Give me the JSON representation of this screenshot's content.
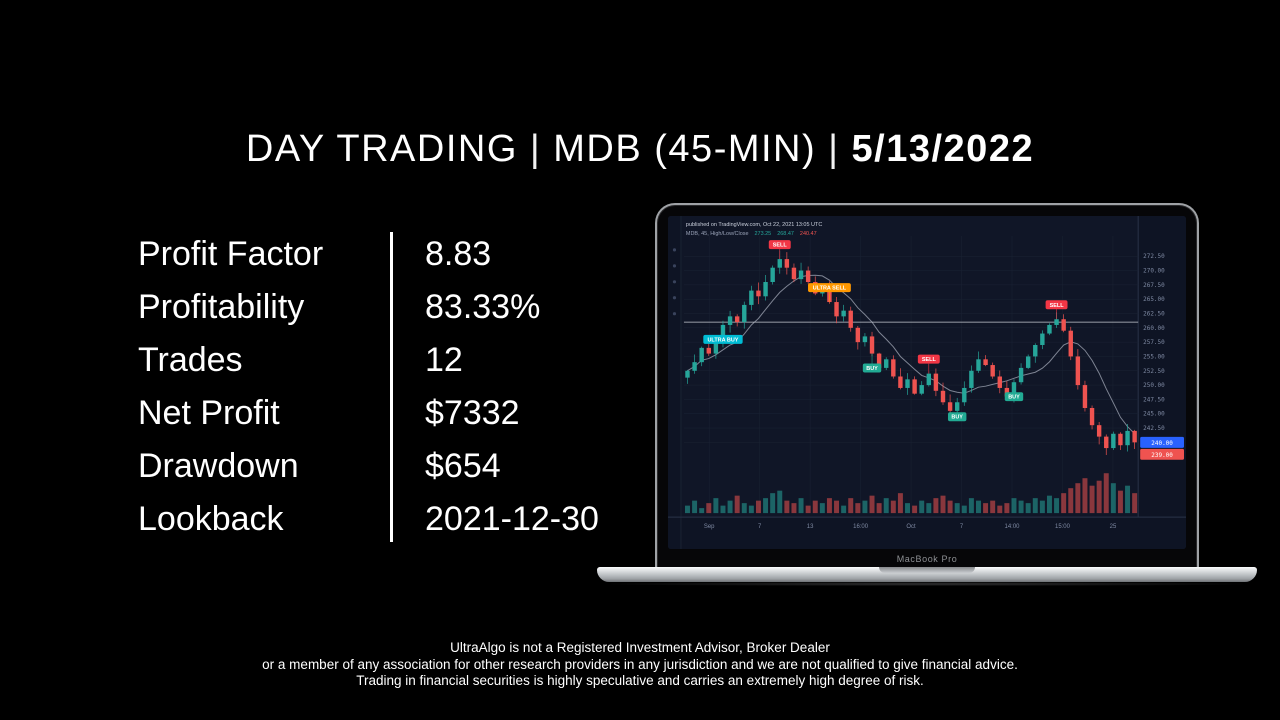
{
  "title": {
    "segments": [
      "DAY TRADING",
      "MDB (45-MIN)",
      "5/13/2022"
    ],
    "divider": "|"
  },
  "stats": {
    "rows": [
      {
        "label": "Profit Factor",
        "value": "8.83"
      },
      {
        "label": "Profitability",
        "value": "83.33%"
      },
      {
        "label": "Trades",
        "value": "12"
      },
      {
        "label": "Net Profit",
        "value": "$7332"
      },
      {
        "label": "Drawdown",
        "value": "$654"
      },
      {
        "label": "Lookback",
        "value": "2021-12-30"
      }
    ]
  },
  "laptop": {
    "label": "MacBook Pro"
  },
  "disclaimer": {
    "lines": [
      "UltraAlgo is not a Registered Investment Advisor, Broker Dealer",
      "or a member of any association for other research providers in any jurisdiction and we are not qualified to give financial advice.",
      "Trading in financial securities is highly speculative and carries an extremely high degree of risk."
    ]
  },
  "chart_data": {
    "type": "candlestick",
    "title": "MDB 45-minute backtest chart",
    "header": {
      "line1": "published on TradingView.com, Oct 22, 2021 13:05 UTC",
      "symbol_line": "MDB, 45, High/Low/Close",
      "values": [
        {
          "text": "273.25",
          "color": "#26a69a"
        },
        {
          "text": "268.47",
          "color": "#26a69a"
        },
        {
          "text": "240.47",
          "color": "#ef5350"
        }
      ]
    },
    "ylim": [
      236,
      275
    ],
    "y_ticks": [
      240,
      242.5,
      245,
      247.5,
      250,
      252.5,
      255,
      257.5,
      260,
      262.5,
      265,
      267.5,
      270,
      272.5
    ],
    "x_labels": [
      "Sep",
      "7",
      "13",
      "16:00",
      "Oct",
      "7",
      "14:00",
      "15:00",
      "25"
    ],
    "entry_line": 261,
    "closes": [
      252.5,
      254,
      256.5,
      255.5,
      258,
      260.5,
      262,
      261,
      264,
      266.5,
      265.5,
      268,
      270.5,
      272,
      270.5,
      268.5,
      270,
      268,
      266,
      267,
      264.5,
      262,
      263,
      260,
      257.5,
      258.5,
      255.5,
      253,
      254.5,
      251.5,
      249.5,
      251,
      248.5,
      250,
      252,
      249,
      247,
      245.5,
      247,
      249.5,
      252.5,
      254.5,
      253.5,
      251.5,
      249.5,
      248,
      250.5,
      253,
      255,
      257,
      259,
      260.5,
      261.5,
      259.5,
      255,
      250,
      246,
      243,
      241,
      239,
      241.5,
      239.5,
      242,
      240
    ],
    "volumes": [
      3,
      5,
      2,
      4,
      6,
      3,
      5,
      7,
      4,
      3,
      5,
      6,
      8,
      9,
      5,
      4,
      6,
      3,
      5,
      4,
      6,
      5,
      3,
      6,
      4,
      5,
      7,
      4,
      6,
      5,
      8,
      4,
      3,
      5,
      4,
      6,
      7,
      5,
      4,
      3,
      6,
      5,
      4,
      5,
      3,
      4,
      6,
      5,
      4,
      6,
      5,
      7,
      6,
      8,
      10,
      12,
      14,
      11,
      13,
      16,
      12,
      9,
      11,
      8
    ],
    "markers": [
      {
        "i": 5,
        "label": "ULTRA BUY",
        "kind": "ultra_buy",
        "side": "below"
      },
      {
        "i": 13,
        "label": "SELL",
        "kind": "sell",
        "side": "above"
      },
      {
        "i": 20,
        "label": "ULTRA SELL",
        "kind": "ultra_sell",
        "side": "above"
      },
      {
        "i": 26,
        "label": "BUY",
        "kind": "buy",
        "side": "below"
      },
      {
        "i": 34,
        "label": "SELL",
        "kind": "sell",
        "side": "above"
      },
      {
        "i": 38,
        "label": "BUY",
        "kind": "buy",
        "side": "below"
      },
      {
        "i": 46,
        "label": "BUY",
        "kind": "buy",
        "side": "below"
      },
      {
        "i": 52,
        "label": "SELL",
        "kind": "sell",
        "side": "above"
      }
    ],
    "colors": {
      "up": "#26a69a",
      "down": "#ef5350",
      "buy": "#22ab94",
      "sell": "#f23645",
      "ultra_buy": "#00bcd4",
      "ultra_sell": "#ff9800",
      "bg": "#101627",
      "panel": "#0e1424",
      "grid": "#1b2334",
      "axis_text": "#7f8aa3",
      "ma_line": "#aeb4c2",
      "price_tag": "#2962ff",
      "entry_line": "#e6e9ef"
    }
  }
}
